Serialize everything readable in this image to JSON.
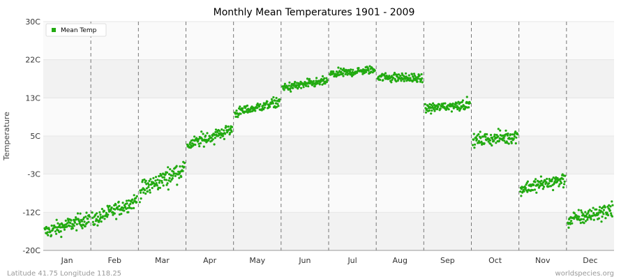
{
  "chart_data": {
    "type": "scatter",
    "title": "Monthly Mean Temperatures 1901 - 2009",
    "xlabel": "",
    "ylabel": "Temperature",
    "categories": [
      "Jan",
      "Feb",
      "Mar",
      "Apr",
      "May",
      "Jun",
      "Jul",
      "Aug",
      "Sep",
      "Oct",
      "Nov",
      "Dec"
    ],
    "yticks": [
      "30C",
      "22C",
      "13C",
      "5C",
      "-3C",
      "-12C",
      "-20C"
    ],
    "ylim": [
      -20,
      30
    ],
    "grid": true,
    "legend": {
      "label": "Mean Temp",
      "position": "top-left"
    },
    "series": [
      {
        "name": "Mean Temp",
        "color": "#22aa11",
        "points_per_month": 109,
        "monthly_summary": [
          {
            "month": "Jan",
            "mean": -14.8,
            "min": -18.5,
            "max": -11.0,
            "start": -16.0,
            "end": -13.0
          },
          {
            "month": "Feb",
            "mean": -11.5,
            "min": -15.0,
            "max": -7.5,
            "start": -13.5,
            "end": -9.0
          },
          {
            "month": "Mar",
            "mean": -4.5,
            "min": -9.5,
            "max": -0.5,
            "start": -7.0,
            "end": -2.0
          },
          {
            "month": "Apr",
            "mean": 4.5,
            "min": 1.0,
            "max": 8.0,
            "start": 3.0,
            "end": 6.5
          },
          {
            "month": "May",
            "mean": 11.0,
            "min": 8.5,
            "max": 13.5,
            "start": 10.0,
            "end": 12.5
          },
          {
            "month": "Jun",
            "mean": 16.0,
            "min": 14.0,
            "max": 18.5,
            "start": 15.5,
            "end": 17.0
          },
          {
            "month": "Jul",
            "mean": 19.2,
            "min": 17.0,
            "max": 21.0,
            "start": 18.5,
            "end": 19.5
          },
          {
            "month": "Aug",
            "mean": 17.8,
            "min": 15.5,
            "max": 20.0,
            "start": 18.0,
            "end": 17.5
          },
          {
            "month": "Sep",
            "mean": 11.5,
            "min": 9.0,
            "max": 14.0,
            "start": 11.0,
            "end": 12.0
          },
          {
            "month": "Oct",
            "mean": 4.5,
            "min": 1.0,
            "max": 7.5,
            "start": 4.0,
            "end": 5.0
          },
          {
            "month": "Nov",
            "mean": -5.5,
            "min": -8.5,
            "max": -1.0,
            "start": -6.5,
            "end": -4.5
          },
          {
            "month": "Dec",
            "mean": -12.5,
            "min": -16.5,
            "max": -9.0,
            "start": -13.5,
            "end": -11.0
          }
        ]
      }
    ]
  },
  "footer": {
    "left": "Latitude 41.75 Longitude 118.25",
    "right": "worldspecies.org"
  }
}
